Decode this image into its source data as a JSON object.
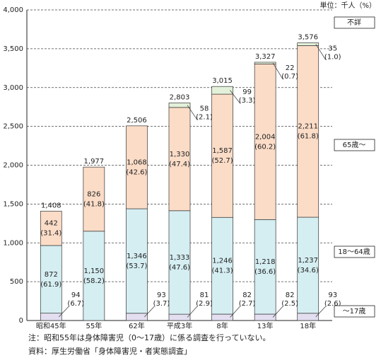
{
  "chart_data": {
    "type": "stacked-bar",
    "unit": "単位：千人（%）",
    "categories": [
      "昭和45年",
      "55年",
      "62年",
      "平成3年",
      "8年",
      "13年",
      "18年"
    ],
    "totals": [
      1408,
      1977,
      2506,
      2803,
      3015,
      3327,
      3576
    ],
    "total_labels": [
      "1,408",
      "1,977",
      "2,506",
      "2,803",
      "3,015",
      "3,327",
      "3,576"
    ],
    "series": [
      {
        "name": "～17歳",
        "color": "#e4dff0",
        "values": [
          94,
          null,
          93,
          81,
          82,
          82,
          93
        ],
        "share_labels": [
          "(6.7)",
          null,
          "(3.7)",
          "(2.9)",
          "(2.7)",
          "(2.5)",
          "(2.6)"
        ]
      },
      {
        "name": "18～64歳",
        "color": "#d5eef2",
        "values": [
          872,
          1150,
          1346,
          1333,
          1246,
          1218,
          1237
        ],
        "value_labels": [
          "872",
          "1,150",
          "1,346",
          "1,333",
          "1,246",
          "1,218",
          "1,237"
        ],
        "share_labels": [
          "(61.9)",
          "(58.2)",
          "(53.7)",
          "(47.6)",
          "(41.3)",
          "(36.6)",
          "(34.6)"
        ]
      },
      {
        "name": "65歳～",
        "color": "#fbdcc7",
        "values": [
          442,
          826,
          1068,
          1330,
          1587,
          2004,
          2211
        ],
        "value_labels": [
          "442",
          "826",
          "1,068",
          "1,330",
          "1,587",
          "2,004",
          "2,211"
        ],
        "share_labels": [
          "(31.4)",
          "(41.8)",
          "(42.6)",
          "(47.4)",
          "(52.7)",
          "(60.2)",
          "(61.8)"
        ]
      },
      {
        "name": "不詳",
        "color": "#e3f1da",
        "values": [
          null,
          null,
          null,
          58,
          99,
          22,
          35
        ],
        "share_labels": [
          null,
          null,
          null,
          "(2.1)",
          "(3.3)",
          "(0.7)",
          "(1.0)"
        ]
      }
    ],
    "ylim": [
      0,
      4000
    ],
    "yticks": [
      0,
      500,
      {
        "value": 1000,
        "label": "1,000"
      },
      {
        "value": 1500,
        "label": "1,500"
      },
      {
        "value": 2000,
        "label": "2,000"
      },
      {
        "value": 2500,
        "label": "2,500"
      },
      {
        "value": 3000,
        "label": "3,000"
      },
      {
        "value": 3500,
        "label": "3,500"
      },
      {
        "value": 4000,
        "label": "4,000"
      }
    ],
    "grid": true,
    "notes": [
      "注：昭和55年は身体障害児（0～17歳）に係る調査を行っていない。",
      "資料：厚生労働省「身体障害児・者実態調査」"
    ]
  }
}
